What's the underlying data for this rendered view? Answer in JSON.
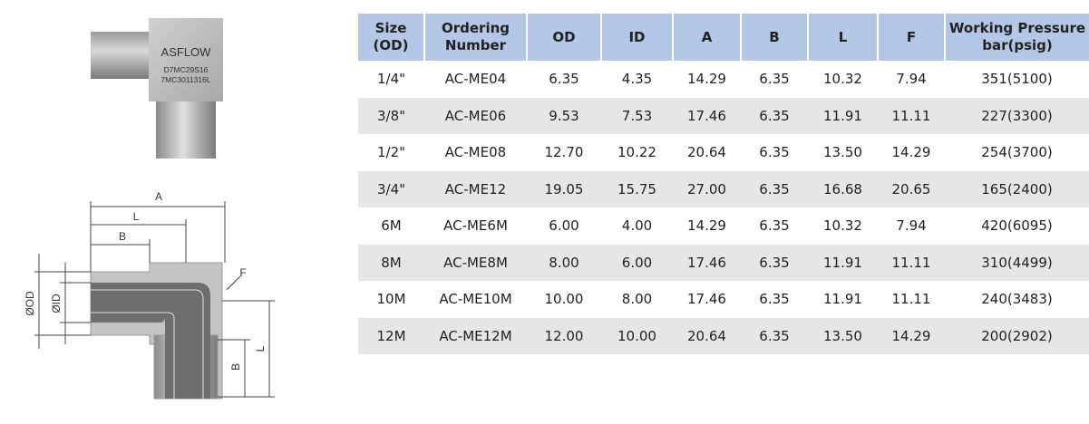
{
  "product_photo": {
    "brand": "ASFLOW",
    "marking_lines": [
      "D7MC29S16",
      "7MC3011316L"
    ]
  },
  "dimension_drawing": {
    "a": "A",
    "l_top": "L",
    "b_top": "B",
    "f": "F",
    "od": "ØOD",
    "id": "ØID",
    "b_side": "B",
    "l_side": "L"
  },
  "table": {
    "header": [
      [
        "Size",
        "(OD)"
      ],
      [
        "Ordering",
        "Number"
      ],
      [
        "OD"
      ],
      [
        "ID"
      ],
      [
        "A"
      ],
      [
        "B"
      ],
      [
        "L"
      ],
      [
        "F"
      ],
      [
        "Working Pressure",
        "bar(psig)"
      ]
    ],
    "rows": [
      [
        "1/4\"",
        "AC-ME04",
        "6.35",
        "4.35",
        "14.29",
        "6.35",
        "10.32",
        "7.94",
        "351(5100)"
      ],
      [
        "3/8\"",
        "AC-ME06",
        "9.53",
        "7.53",
        "17.46",
        "6.35",
        "11.91",
        "11.11",
        "227(3300)"
      ],
      [
        "1/2\"",
        "AC-ME08",
        "12.70",
        "10.22",
        "20.64",
        "6.35",
        "13.50",
        "14.29",
        "254(3700)"
      ],
      [
        "3/4\"",
        "AC-ME12",
        "19.05",
        "15.75",
        "27.00",
        "6.35",
        "16.68",
        "20.65",
        "165(2400)"
      ],
      [
        "6M",
        "AC-ME6M",
        "6.00",
        "4.00",
        "14.29",
        "6.35",
        "10.32",
        "7.94",
        "420(6095)"
      ],
      [
        "8M",
        "AC-ME8M",
        "8.00",
        "6.00",
        "17.46",
        "6.35",
        "11.91",
        "11.11",
        "310(4499)"
      ],
      [
        "10M",
        "AC-ME10M",
        "10.00",
        "8.00",
        "17.46",
        "6.35",
        "11.91",
        "11.11",
        "240(3483)"
      ],
      [
        "12M",
        "AC-ME12M",
        "12.00",
        "10.00",
        "20.64",
        "6.35",
        "13.50",
        "14.29",
        "200(2902)"
      ]
    ]
  }
}
